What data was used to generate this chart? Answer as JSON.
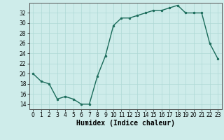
{
  "x": [
    0,
    1,
    2,
    3,
    4,
    5,
    6,
    7,
    8,
    9,
    10,
    11,
    12,
    13,
    14,
    15,
    16,
    17,
    18,
    19,
    20,
    21,
    22,
    23
  ],
  "y": [
    20,
    18.5,
    18,
    15,
    15.5,
    15,
    14,
    14,
    19.5,
    23.5,
    29.5,
    31,
    31,
    31.5,
    32,
    32.5,
    32.5,
    33,
    33.5,
    32,
    32,
    32,
    26,
    23
  ],
  "line_color": "#1a6b5a",
  "marker_color": "#1a6b5a",
  "bg_color": "#ceecea",
  "grid_color": "#aed8d5",
  "xlabel": "Humidex (Indice chaleur)",
  "xlim": [
    -0.5,
    23.5
  ],
  "ylim": [
    13,
    34
  ],
  "yticks": [
    14,
    16,
    18,
    20,
    22,
    24,
    26,
    28,
    30,
    32
  ],
  "xticks": [
    0,
    1,
    2,
    3,
    4,
    5,
    6,
    7,
    8,
    9,
    10,
    11,
    12,
    13,
    14,
    15,
    16,
    17,
    18,
    19,
    20,
    21,
    22,
    23
  ],
  "tick_labelsize": 5.5,
  "xlabel_fontsize": 7,
  "linewidth": 1.0,
  "markersize": 2.0
}
